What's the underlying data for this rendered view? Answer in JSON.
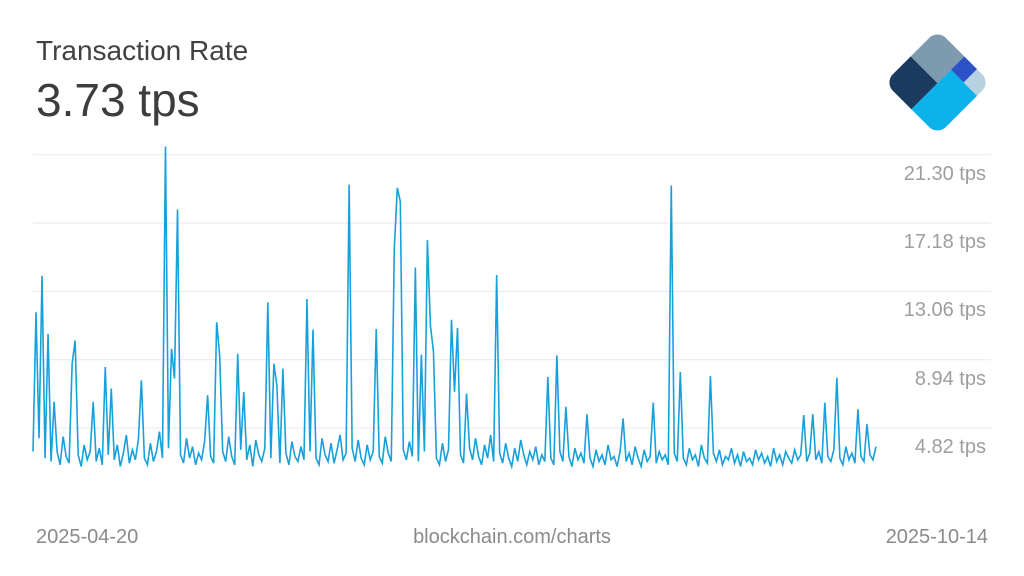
{
  "header": {
    "title": "Transaction Rate",
    "current_value": "3.73 tps"
  },
  "logo": {
    "name": "blockchain-com-logo",
    "colors": {
      "slate": "#7E9AAE",
      "navy": "#1B3A5F",
      "royal": "#2B53C7",
      "light": "#B7D2E1",
      "cyan": "#0CB2EA"
    }
  },
  "footer": {
    "start_date": "2025-04-20",
    "watermark": "blockchain.com/charts",
    "end_date": "2025-10-14"
  },
  "chart_data": {
    "type": "line",
    "title": "Transaction Rate",
    "ylabel": "tps",
    "xlabel": "date",
    "unit": "tps",
    "current_value": 3.73,
    "x_start": "2025-04-20",
    "x_end": "2025-10-14",
    "y_ticks": [
      21.3,
      17.18,
      13.06,
      8.94,
      4.82
    ],
    "y_tick_labels": [
      "21.30 tps",
      "17.18 tps",
      "13.06 tps",
      "8.94 tps",
      "4.82 tps"
    ],
    "ylim": [
      0.7,
      21.85
    ],
    "grid": true,
    "legend": false,
    "line_color": "#17A0DB",
    "grid_color": "#E9E9E9",
    "values": [
      3.4,
      11.8,
      4.2,
      14,
      3,
      10.5,
      2.8,
      6.4,
      3.4,
      2.6,
      4.3,
      3.1,
      2.7,
      8.7,
      10.1,
      3.2,
      2.5,
      3.8,
      2.9,
      3.4,
      6.4,
      2.8,
      3.6,
      2.6,
      8.5,
      3.2,
      7.2,
      2.9,
      3.8,
      2.5,
      3.3,
      4.4,
      2.7,
      3.5,
      2.9,
      4.1,
      7.7,
      3,
      2.6,
      3.9,
      2.8,
      3.4,
      4.6,
      3,
      21.8,
      3.6,
      9.6,
      7.8,
      18,
      3.2,
      2.7,
      4.2,
      3,
      3.7,
      2.6,
      3.3,
      2.9,
      4,
      6.8,
      3.1,
      2.7,
      11.2,
      9.2,
      3.4,
      2.8,
      4.3,
      3.1,
      2.6,
      9.3,
      3.5,
      7,
      2.9,
      3.8,
      2.5,
      4.1,
      3.2,
      2.8,
      3.6,
      12.4,
      3,
      8.7,
      7.4,
      2.7,
      8.4,
      3.3,
      2.6,
      4,
      3.1,
      2.8,
      3.7,
      2.9,
      12.6,
      3.4,
      10.75,
      3,
      2.6,
      4.2,
      3.2,
      2.8,
      3.9,
      2.7,
      3.5,
      4.4,
      2.9,
      3.3,
      19.5,
      3.6,
      2.8,
      4.1,
      3,
      2.6,
      3.8,
      2.9,
      3.4,
      10.8,
      3.1,
      2.7,
      4.3,
      3.3,
      2.8,
      15.6,
      19.3,
      18.5,
      3.5,
      2.9,
      4,
      3.1,
      14.5,
      2.8,
      9.25,
      3.4,
      16.15,
      11,
      9.45,
      3,
      2.6,
      3.9,
      2.8,
      3.5,
      11.35,
      7,
      10.85,
      3.2,
      2.7,
      6.9,
      3.6,
      2.9,
      4.2,
      3.1,
      2.6,
      3.8,
      3,
      4.4,
      2.8,
      14.05,
      3.3,
      2.7,
      3.9,
      3,
      2.5,
      3.6,
      2.8,
      4.1,
      3.2,
      2.6,
      3.4,
      2.9,
      3.7,
      2.6,
      3.2,
      2.8,
      7.9,
      3,
      2.6,
      9.2,
      3.4,
      2.8,
      6.1,
      3.1,
      2.5,
      3.6,
      2.9,
      3.3,
      2.7,
      5.65,
      3,
      2.5,
      3.5,
      2.8,
      3.2,
      2.6,
      3.8,
      2.9,
      3.1,
      2.5,
      3.4,
      5.4,
      2.8,
      3.3,
      2.6,
      3.7,
      3,
      2.5,
      3.5,
      2.8,
      3.1,
      6.35,
      2.7,
      3.4,
      2.9,
      3.2,
      2.6,
      19.45,
      3.3,
      2.8,
      8.2,
      3,
      2.6,
      3.6,
      2.9,
      3.2,
      2.5,
      3.8,
      3,
      2.7,
      7.95,
      3.3,
      2.8,
      3.5,
      2.6,
      3.1,
      2.9,
      3.6,
      2.7,
      3.2,
      2.5,
      3.4,
      2.8,
      3,
      2.6,
      3.5,
      2.9,
      3.3,
      2.7,
      3.1,
      2.5,
      3.6,
      2.8,
      3.2,
      2.6,
      3.4,
      3,
      2.7,
      3.5,
      2.9,
      3.2,
      5.6,
      2.8,
      3.3,
      5.65,
      2.9,
      3.4,
      2.7,
      6.35,
      3.1,
      2.8,
      3.5,
      7.85,
      3,
      2.6,
      3.7,
      2.9,
      3.3,
      2.7,
      5.95,
      3.1,
      2.8,
      5.05,
      3.2,
      2.9,
      3.7
    ]
  }
}
